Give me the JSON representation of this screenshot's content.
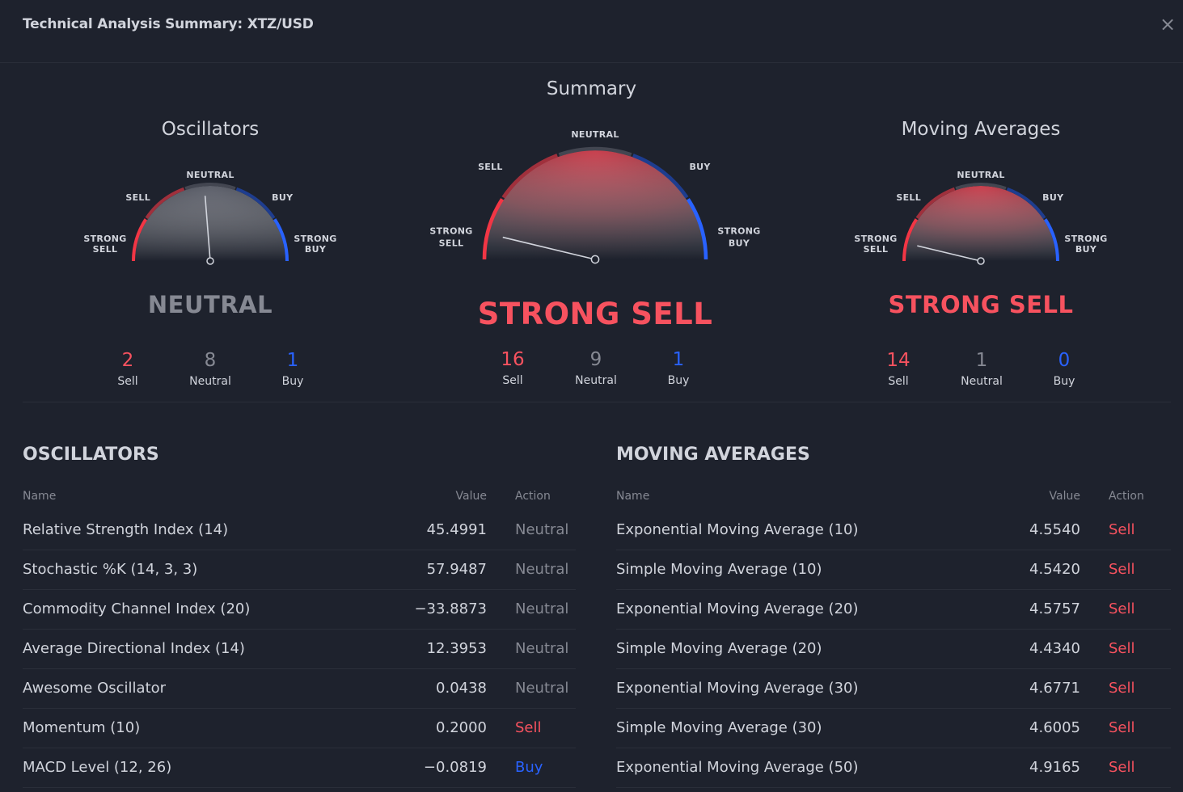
{
  "header": {
    "title": "Technical Analysis Summary: XTZ/USD",
    "close_icon": "×"
  },
  "summary": {
    "title": "Summary"
  },
  "gauge_labels": {
    "strong_sell": [
      "STRONG",
      "SELL"
    ],
    "sell": "SELL",
    "neutral": "NEUTRAL",
    "buy": "BUY",
    "strong_buy": [
      "STRONG",
      "BUY"
    ]
  },
  "gauges": {
    "oscillators": {
      "title": "Oscillators",
      "rating": "NEUTRAL",
      "needle_value": -0.05,
      "counts": {
        "sell": "2",
        "neutral": "8",
        "buy": "1"
      },
      "count_labels": {
        "sell": "Sell",
        "neutral": "Neutral",
        "buy": "Buy"
      }
    },
    "summary": {
      "rating": "STRONG SELL",
      "needle_value": -0.85,
      "counts": {
        "sell": "16",
        "neutral": "9",
        "buy": "1"
      },
      "count_labels": {
        "sell": "Sell",
        "neutral": "Neutral",
        "buy": "Buy"
      }
    },
    "moving_averages": {
      "title": "Moving Averages",
      "rating": "STRONG SELL",
      "needle_value": -0.85,
      "counts": {
        "sell": "14",
        "neutral": "1",
        "buy": "0"
      },
      "count_labels": {
        "sell": "Sell",
        "neutral": "Neutral",
        "buy": "Buy"
      }
    }
  },
  "colors": {
    "sell": "#f7525f",
    "neutral": "#868993",
    "buy": "#2962ff",
    "background": "#1e222d",
    "text": "#d1d4dc"
  },
  "oscillators_table": {
    "heading": "OSCILLATORS",
    "columns": {
      "name": "Name",
      "value": "Value",
      "action": "Action"
    },
    "rows": [
      {
        "name": "Relative Strength Index (14)",
        "value": "45.4991",
        "action": "Neutral"
      },
      {
        "name": "Stochastic %K (14, 3, 3)",
        "value": "57.9487",
        "action": "Neutral"
      },
      {
        "name": "Commodity Channel Index (20)",
        "value": "−33.8873",
        "action": "Neutral"
      },
      {
        "name": "Average Directional Index (14)",
        "value": "12.3953",
        "action": "Neutral"
      },
      {
        "name": "Awesome Oscillator",
        "value": "0.0438",
        "action": "Neutral"
      },
      {
        "name": "Momentum (10)",
        "value": "0.2000",
        "action": "Sell"
      },
      {
        "name": "MACD Level (12, 26)",
        "value": "−0.0819",
        "action": "Buy"
      }
    ]
  },
  "ma_table": {
    "heading": "MOVING AVERAGES",
    "columns": {
      "name": "Name",
      "value": "Value",
      "action": "Action"
    },
    "rows": [
      {
        "name": "Exponential Moving Average (10)",
        "value": "4.5540",
        "action": "Sell"
      },
      {
        "name": "Simple Moving Average (10)",
        "value": "4.5420",
        "action": "Sell"
      },
      {
        "name": "Exponential Moving Average (20)",
        "value": "4.5757",
        "action": "Sell"
      },
      {
        "name": "Simple Moving Average (20)",
        "value": "4.4340",
        "action": "Sell"
      },
      {
        "name": "Exponential Moving Average (30)",
        "value": "4.6771",
        "action": "Sell"
      },
      {
        "name": "Simple Moving Average (30)",
        "value": "4.6005",
        "action": "Sell"
      },
      {
        "name": "Exponential Moving Average (50)",
        "value": "4.9165",
        "action": "Sell"
      }
    ]
  }
}
